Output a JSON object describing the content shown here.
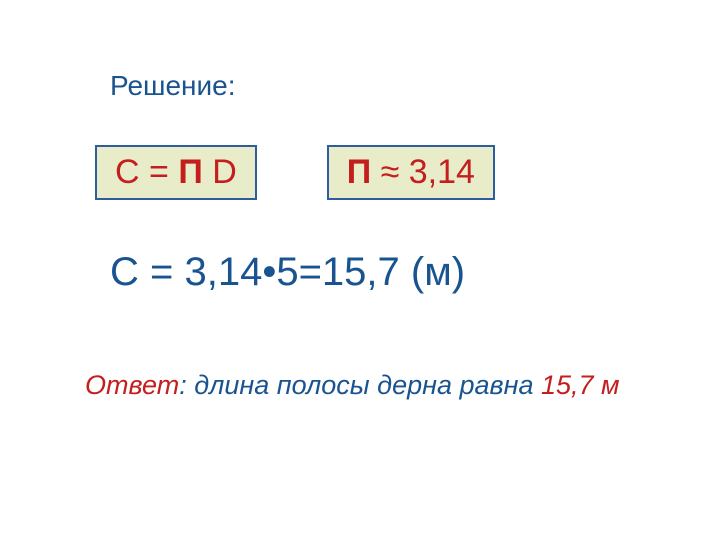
{
  "heading": "Решение:",
  "formula1": {
    "text_c": "С = ",
    "text_pi": "П",
    "text_d": " D"
  },
  "formula2": {
    "text_pi": "П",
    "text_approx": " ≈ 3,14"
  },
  "calculation": "С = 3,14•5=15,7 (м)",
  "answer": {
    "label": "Ответ",
    "text": ": длина полосы дерна равна ",
    "value": "15,7 м"
  },
  "styling": {
    "background_color": "#ffffff",
    "heading_color": "#1a5490",
    "heading_fontsize": 28,
    "box_border_color": "#2e5c9e",
    "box_background_color": "#e8ecc8",
    "box_text_color": "#c41e1e",
    "box_fontsize": 34,
    "calculation_color": "#1a5490",
    "calculation_fontsize": 40,
    "answer_label_color": "#c41e1e",
    "answer_text_color": "#1a5490",
    "answer_value_color": "#c41e1e",
    "answer_fontsize": 27
  }
}
